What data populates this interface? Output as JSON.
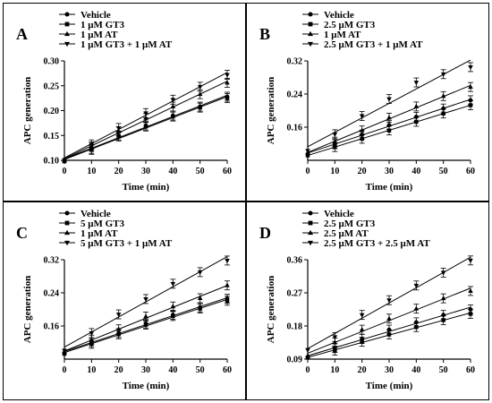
{
  "chart_data": [
    {
      "type": "line",
      "panel_label": "A",
      "xlabel": "Time (min)",
      "ylabel": "APC generation",
      "xlim": [
        0,
        60
      ],
      "ylim": [
        0.1,
        0.3
      ],
      "xticks": [
        0,
        10,
        20,
        30,
        40,
        50,
        60
      ],
      "yticks": [
        0.1,
        0.15,
        0.2,
        0.25,
        0.3
      ],
      "ytick_labels": [
        "0.10",
        "0.15",
        "0.20",
        "0.25",
        "0.30"
      ],
      "x": [
        0,
        10,
        20,
        30,
        40,
        50,
        60
      ],
      "legend_position": "top-center",
      "series": [
        {
          "name": "Vehicle",
          "marker": "circle",
          "values": [
            0.099,
            0.123,
            0.15,
            0.17,
            0.19,
            0.208,
            0.228
          ]
        },
        {
          "name": "1 μM GT3",
          "marker": "square",
          "values": [
            0.098,
            0.121,
            0.148,
            0.168,
            0.188,
            0.206,
            0.225
          ]
        },
        {
          "name": "1 μM AT",
          "marker": "triangle-up",
          "values": [
            0.1,
            0.128,
            0.158,
            0.185,
            0.208,
            0.233,
            0.256
          ]
        },
        {
          "name": "1 μM GT3 + 1 μM AT",
          "marker": "triangle-down",
          "values": [
            0.101,
            0.132,
            0.165,
            0.195,
            0.222,
            0.248,
            0.272
          ]
        }
      ]
    },
    {
      "type": "line",
      "panel_label": "B",
      "xlabel": "Time (min)",
      "ylabel": "APC generation",
      "xlim": [
        0,
        60
      ],
      "ylim": [
        0.08,
        0.32
      ],
      "xticks": [
        0,
        10,
        20,
        30,
        40,
        50,
        60
      ],
      "yticks": [
        0.16,
        0.24,
        0.32
      ],
      "ytick_labels": [
        "0.16",
        "0.24",
        "0.32"
      ],
      "x": [
        0,
        10,
        20,
        30,
        40,
        50,
        60
      ],
      "legend_position": "top-center",
      "series": [
        {
          "name": "Vehicle",
          "marker": "circle",
          "values": [
            0.095,
            0.119,
            0.142,
            0.165,
            0.185,
            0.205,
            0.225
          ]
        },
        {
          "name": "2.5 μM GT3",
          "marker": "square",
          "values": [
            0.092,
            0.112,
            0.132,
            0.152,
            0.173,
            0.193,
            0.213
          ]
        },
        {
          "name": "1 μM AT",
          "marker": "triangle-up",
          "values": [
            0.098,
            0.125,
            0.152,
            0.183,
            0.21,
            0.235,
            0.257
          ]
        },
        {
          "name": "2.5 μM GT3 + 1 μM AT",
          "marker": "triangle-down",
          "values": [
            0.103,
            0.143,
            0.187,
            0.228,
            0.268,
            0.288,
            0.305
          ]
        }
      ]
    },
    {
      "type": "line",
      "panel_label": "C",
      "xlabel": "Time (min)",
      "ylabel": "APC generation",
      "xlim": [
        0,
        60
      ],
      "ylim": [
        0.08,
        0.32
      ],
      "xticks": [
        0,
        10,
        20,
        30,
        40,
        50,
        60
      ],
      "yticks": [
        0.16,
        0.24,
        0.32
      ],
      "ytick_labels": [
        "0.16",
        "0.24",
        "0.32"
      ],
      "x": [
        0,
        10,
        20,
        30,
        40,
        50,
        60
      ],
      "legend_position": "top-center",
      "series": [
        {
          "name": "Vehicle",
          "marker": "circle",
          "values": [
            0.095,
            0.121,
            0.143,
            0.166,
            0.187,
            0.205,
            0.226
          ]
        },
        {
          "name": "5 μM GT3",
          "marker": "square",
          "values": [
            0.093,
            0.117,
            0.14,
            0.163,
            0.184,
            0.202,
            0.221
          ]
        },
        {
          "name": "1 μM AT",
          "marker": "triangle-up",
          "values": [
            0.097,
            0.127,
            0.152,
            0.183,
            0.207,
            0.227,
            0.258
          ]
        },
        {
          "name": "5 μM GT3 + 1 μM AT",
          "marker": "triangle-down",
          "values": [
            0.101,
            0.143,
            0.188,
            0.225,
            0.262,
            0.29,
            0.318
          ]
        }
      ]
    },
    {
      "type": "line",
      "panel_label": "D",
      "xlabel": "Time (min)",
      "ylabel": "APC generation",
      "xlim": [
        0,
        60
      ],
      "ylim": [
        0.09,
        0.36
      ],
      "xticks": [
        0,
        10,
        20,
        30,
        40,
        50,
        60
      ],
      "yticks": [
        0.09,
        0.18,
        0.27,
        0.36
      ],
      "ytick_labels": [
        "0.09",
        "0.18",
        "0.27",
        "0.36"
      ],
      "x": [
        0,
        10,
        20,
        30,
        40,
        50,
        60
      ],
      "legend_position": "top-center",
      "series": [
        {
          "name": "Vehicle",
          "marker": "circle",
          "values": [
            0.095,
            0.12,
            0.145,
            0.17,
            0.19,
            0.21,
            0.225
          ]
        },
        {
          "name": "2.5 μM GT3",
          "marker": "square",
          "values": [
            0.094,
            0.113,
            0.137,
            0.157,
            0.177,
            0.196,
            0.213
          ]
        },
        {
          "name": "2.5 μM AT",
          "marker": "triangle-up",
          "values": [
            0.099,
            0.135,
            0.17,
            0.2,
            0.227,
            0.255,
            0.275
          ]
        },
        {
          "name": "2.5 μM GT3 + 2.5 μM AT",
          "marker": "triangle-down",
          "values": [
            0.115,
            0.15,
            0.21,
            0.25,
            0.29,
            0.325,
            0.358
          ]
        }
      ]
    }
  ]
}
